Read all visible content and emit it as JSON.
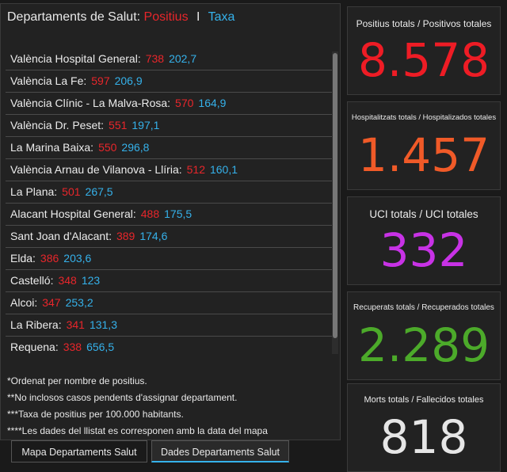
{
  "left_panel": {
    "title": "Departaments de Salut:",
    "legend_pos": "Positius",
    "legend_sep": "I",
    "legend_taxa": "Taxa",
    "items": [
      {
        "name": "València Hospital General:",
        "pos": "738",
        "taxa": "202,7"
      },
      {
        "name": "València La Fe:",
        "pos": "597",
        "taxa": "206,9"
      },
      {
        "name": "València Clínic - La Malva-Rosa:",
        "pos": "570",
        "taxa": "164,9"
      },
      {
        "name": "València Dr. Peset:",
        "pos": "551",
        "taxa": "197,1"
      },
      {
        "name": "La Marina Baixa:",
        "pos": "550",
        "taxa": "296,8"
      },
      {
        "name": "València Arnau de Vilanova - Llíria:",
        "pos": "512",
        "taxa": "160,1"
      },
      {
        "name": "La Plana:",
        "pos": "501",
        "taxa": "267,5"
      },
      {
        "name": "Alacant Hospital General:",
        "pos": "488",
        "taxa": "175,5"
      },
      {
        "name": "Sant Joan d'Alacant:",
        "pos": "389",
        "taxa": "174,6"
      },
      {
        "name": "Elda:",
        "pos": "386",
        "taxa": "203,6"
      },
      {
        "name": "Castelló:",
        "pos": "348",
        "taxa": "123"
      },
      {
        "name": "Alcoi:",
        "pos": "347",
        "taxa": "253,2"
      },
      {
        "name": "La Ribera:",
        "pos": "341",
        "taxa": "131,3"
      },
      {
        "name": "Requena:",
        "pos": "338",
        "taxa": "656,5"
      }
    ],
    "notes": [
      "*Ordenat per nombre de positius.",
      "**No inclosos casos pendents d'assignar departament.",
      "***Taxa de positius per 100.000 habitants.",
      "****Les dades del llistat es corresponen amb la data del mapa"
    ]
  },
  "tabs": [
    "Mapa Departaments Salut",
    "Dades Departaments Salut"
  ],
  "cards": [
    {
      "title": "Positius totals / Positivos totales",
      "value": "8.578",
      "color": "#ee1c25"
    },
    {
      "title": "Hospitalitzats totals / Hospitalizados totales",
      "value": "1.457",
      "color": "#f05a28"
    },
    {
      "title": "UCI totals / UCI totales",
      "value": "332",
      "color": "#c832e6"
    },
    {
      "title": "Recuperats totals / Recuperados totales",
      "value": "2.289",
      "color": "#4caa2a"
    },
    {
      "title": "Morts totals / Fallecidos totales",
      "value": "818",
      "color": "#e6e6e6"
    }
  ]
}
